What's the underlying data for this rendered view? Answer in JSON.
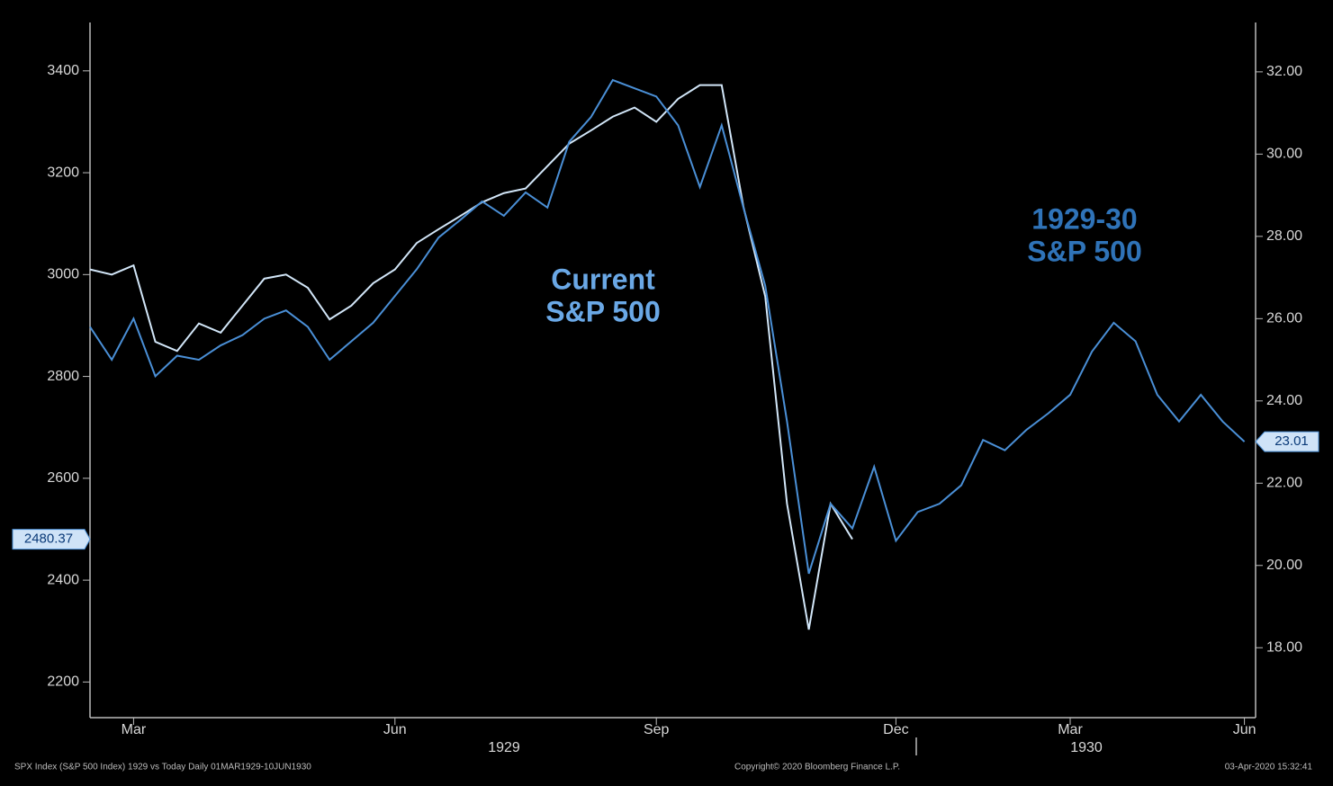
{
  "chart_data": {
    "type": "line",
    "categories": [
      null,
      null,
      "Mar",
      null,
      null,
      null,
      null,
      null,
      null,
      null,
      null,
      null,
      null,
      null,
      "Jun",
      null,
      null,
      null,
      null,
      null,
      null,
      null,
      null,
      null,
      null,
      null,
      "Sep",
      null,
      null,
      null,
      null,
      null,
      null,
      null,
      null,
      null,
      null,
      "Dec",
      null,
      null,
      null,
      null,
      null,
      null,
      null,
      "Mar",
      null,
      null,
      null,
      null,
      null,
      null,
      null,
      "Jun"
    ],
    "year_labels": [
      "1929",
      "1930"
    ],
    "series": [
      {
        "name": "Current S&P 500",
        "color": "#d2e6f8",
        "values": [
          3010,
          3000,
          3018,
          2868,
          2850,
          2904,
          2886,
          2939,
          2992,
          3000,
          2974,
          2912,
          2939,
          2983,
          3010,
          3062,
          3089,
          3115,
          3142,
          3160,
          3169,
          3213,
          3257,
          3283,
          3310,
          3328,
          3300,
          3345,
          3372,
          3372,
          3133,
          2957,
          2550,
          2303,
          2550,
          2480.37,
          null,
          null,
          null,
          null,
          null,
          null,
          null,
          null,
          null,
          null,
          null,
          null,
          null,
          null,
          null,
          null,
          null,
          null
        ]
      },
      {
        "name": "1929-30 S&P 500",
        "color": "#4a8fd6",
        "axis": "y2",
        "values": [
          25.8,
          25.0,
          26.0,
          24.6,
          25.1,
          25.0,
          25.35,
          25.6,
          26.0,
          26.2,
          25.8,
          25.0,
          25.45,
          25.9,
          26.55,
          27.2,
          27.97,
          28.4,
          28.85,
          28.5,
          29.07,
          28.7,
          30.3,
          30.9,
          31.8,
          31.6,
          31.4,
          30.7,
          29.2,
          30.7,
          28.7,
          26.8,
          23.5,
          19.8,
          21.5,
          20.9,
          22.4,
          20.6,
          21.3,
          21.5,
          21.95,
          23.05,
          22.8,
          23.3,
          23.7,
          24.15,
          25.2,
          25.9,
          25.45,
          24.15,
          23.5,
          24.15,
          23.5,
          23.01
        ]
      }
    ],
    "annotations": [
      {
        "lines": [
          "Current",
          "S&P 500"
        ],
        "color": "#6aa8e6"
      },
      {
        "lines": [
          "1929-30",
          "S&P 500"
        ],
        "color": "#2f73b8"
      }
    ],
    "ylim": [
      2130,
      3495
    ],
    "yticks": [
      2200,
      2400,
      2600,
      2800,
      3000,
      3200,
      3400
    ],
    "y2lim": [
      16.3,
      33.2
    ],
    "y2ticks": [
      {
        "value": 18,
        "label": "18.00"
      },
      {
        "value": 20,
        "label": "20.00"
      },
      {
        "value": 22,
        "label": "22.00"
      },
      {
        "value": 24,
        "label": "24.00"
      },
      {
        "value": 26,
        "label": "26.00"
      },
      {
        "value": 28,
        "label": "28.00"
      },
      {
        "value": 30,
        "label": "30.00"
      },
      {
        "value": 32,
        "label": "32.00"
      }
    ],
    "footer": {
      "left": "SPX Index (S&P 500 Index) 1929 vs Today  Daily 01MAR1929-10JUN1930",
      "center": "Copyright© 2020 Bloomberg Finance L.P.",
      "right": "03-Apr-2020 15:32:41"
    }
  }
}
